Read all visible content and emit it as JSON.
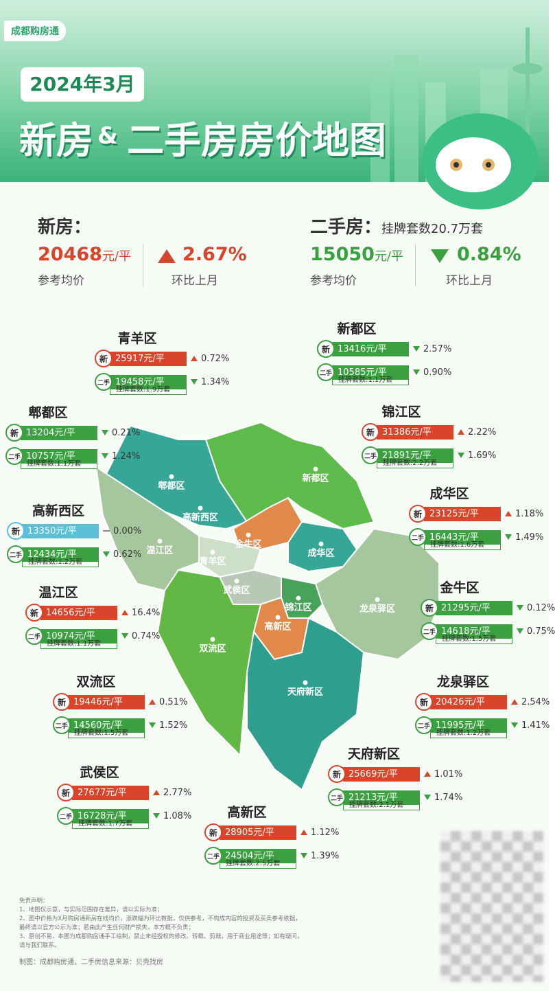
{
  "brand": "成都购房通",
  "header": {
    "date": "2024年3月",
    "title_left": "新房",
    "title_amp": "&",
    "title_right": "二手房房价地图"
  },
  "summary": {
    "new": {
      "label": "新房：",
      "price": "20468",
      "unit": "元/平",
      "price_caption": "参考均价",
      "change": "2.67%",
      "change_caption": "环比上月",
      "direction": "up"
    },
    "second": {
      "label": "二手房：",
      "listings": "挂牌套数20.7万套",
      "price": "15050",
      "unit": "元/平",
      "price_caption": "参考均价",
      "change": "0.84%",
      "change_caption": "环比上月",
      "direction": "down"
    }
  },
  "tags": {
    "new": "新",
    "second": "二手"
  },
  "districts": [
    {
      "name": "青羊区",
      "new": {
        "price": "25917元/平",
        "change": "0.72%",
        "direction": "up"
      },
      "second": {
        "price": "19458元/平",
        "change": "1.34%",
        "direction": "down"
      },
      "listings": "挂牌套数:1.9万套"
    },
    {
      "name": "新都区",
      "new": {
        "price": "13416元/平",
        "change": "2.57%",
        "direction": "down"
      },
      "second": {
        "price": "10585元/平",
        "change": "0.90%",
        "direction": "down"
      },
      "listings": "挂牌套数:1.1万套"
    },
    {
      "name": "郫都区",
      "new": {
        "price": "13204元/平",
        "change": "0.21%",
        "direction": "down"
      },
      "second": {
        "price": "10757元/平",
        "change": "1.24%",
        "direction": "down"
      },
      "listings": "挂牌套数:1.1万套"
    },
    {
      "name": "锦江区",
      "new": {
        "price": "31386元/平",
        "change": "2.22%",
        "direction": "up"
      },
      "second": {
        "price": "21891元/平",
        "change": "1.69%",
        "direction": "down"
      },
      "listings": "挂牌套数:2.2万套"
    },
    {
      "name": "高新西区",
      "new": {
        "price": "13350元/平",
        "change": "0.00%",
        "direction": "flat"
      },
      "second": {
        "price": "12434元/平",
        "change": "0.62%",
        "direction": "down"
      },
      "listings": "挂牌套数:1.2万套"
    },
    {
      "name": "成华区",
      "new": {
        "price": "23125元/平",
        "change": "1.18%",
        "direction": "up"
      },
      "second": {
        "price": "16443元/平",
        "change": "1.49%",
        "direction": "down"
      },
      "listings": "挂牌套数:1.6万套"
    },
    {
      "name": "温江区",
      "new": {
        "price": "14656元/平",
        "change": "16.4%",
        "direction": "up"
      },
      "second": {
        "price": "10974元/平",
        "change": "0.74%",
        "direction": "down"
      },
      "listings": "挂牌套数:1.1万套"
    },
    {
      "name": "金牛区",
      "new": {
        "price": "21295元/平",
        "change": "0.12%",
        "direction": "down"
      },
      "second": {
        "price": "14618元/平",
        "change": "0.75%",
        "direction": "down"
      },
      "listings": "挂牌套数:1.5万套"
    },
    {
      "name": "双流区",
      "new": {
        "price": "19446元/平",
        "change": "0.51%",
        "direction": "up"
      },
      "second": {
        "price": "14560元/平",
        "change": "1.52%",
        "direction": "down"
      },
      "listings": "挂牌套数:1.5万套"
    },
    {
      "name": "龙泉驿区",
      "new": {
        "price": "20426元/平",
        "change": "2.54%",
        "direction": "up"
      },
      "second": {
        "price": "11995元/平",
        "change": "1.41%",
        "direction": "down"
      },
      "listings": "挂牌套数:1.2万套"
    },
    {
      "name": "武侯区",
      "new": {
        "price": "27677元/平",
        "change": "2.77%",
        "direction": "up"
      },
      "second": {
        "price": "16728元/平",
        "change": "1.08%",
        "direction": "down"
      },
      "listings": "挂牌套数:1.7万套"
    },
    {
      "name": "天府新区",
      "new": {
        "price": "25669元/平",
        "change": "1.01%",
        "direction": "up"
      },
      "second": {
        "price": "21213元/平",
        "change": "1.74%",
        "direction": "down"
      },
      "listings": "挂牌套数:2.1万套"
    },
    {
      "name": "高新区",
      "new": {
        "price": "28905元/平",
        "change": "1.12%",
        "direction": "up"
      },
      "second": {
        "price": "24504元/平",
        "change": "1.39%",
        "direction": "down"
      },
      "listings": "挂牌套数:2.5万套"
    }
  ],
  "footer": {
    "disclaimer_title": "免责声明：",
    "lines": [
      "1、地图仅示意，与实际范围存在差异，请以实际为准；",
      "2、图中价格为X月购房通新房在线均价，涨跌幅为环比数据，仅供参考，不构成内容的投资及买卖参考依据，",
      "最终请以官方公示为准；若由此产生任何财产损失，本方概不负责；",
      "3、原创不易，本图为成都购房通手工绘制，禁止未经授权的修改、转载、剪裁，用于商业用途等；如有疑问，",
      "请与我们联系。"
    ],
    "credit": "制图：成都购房通，二手房信息来源：贝壳找房"
  }
}
